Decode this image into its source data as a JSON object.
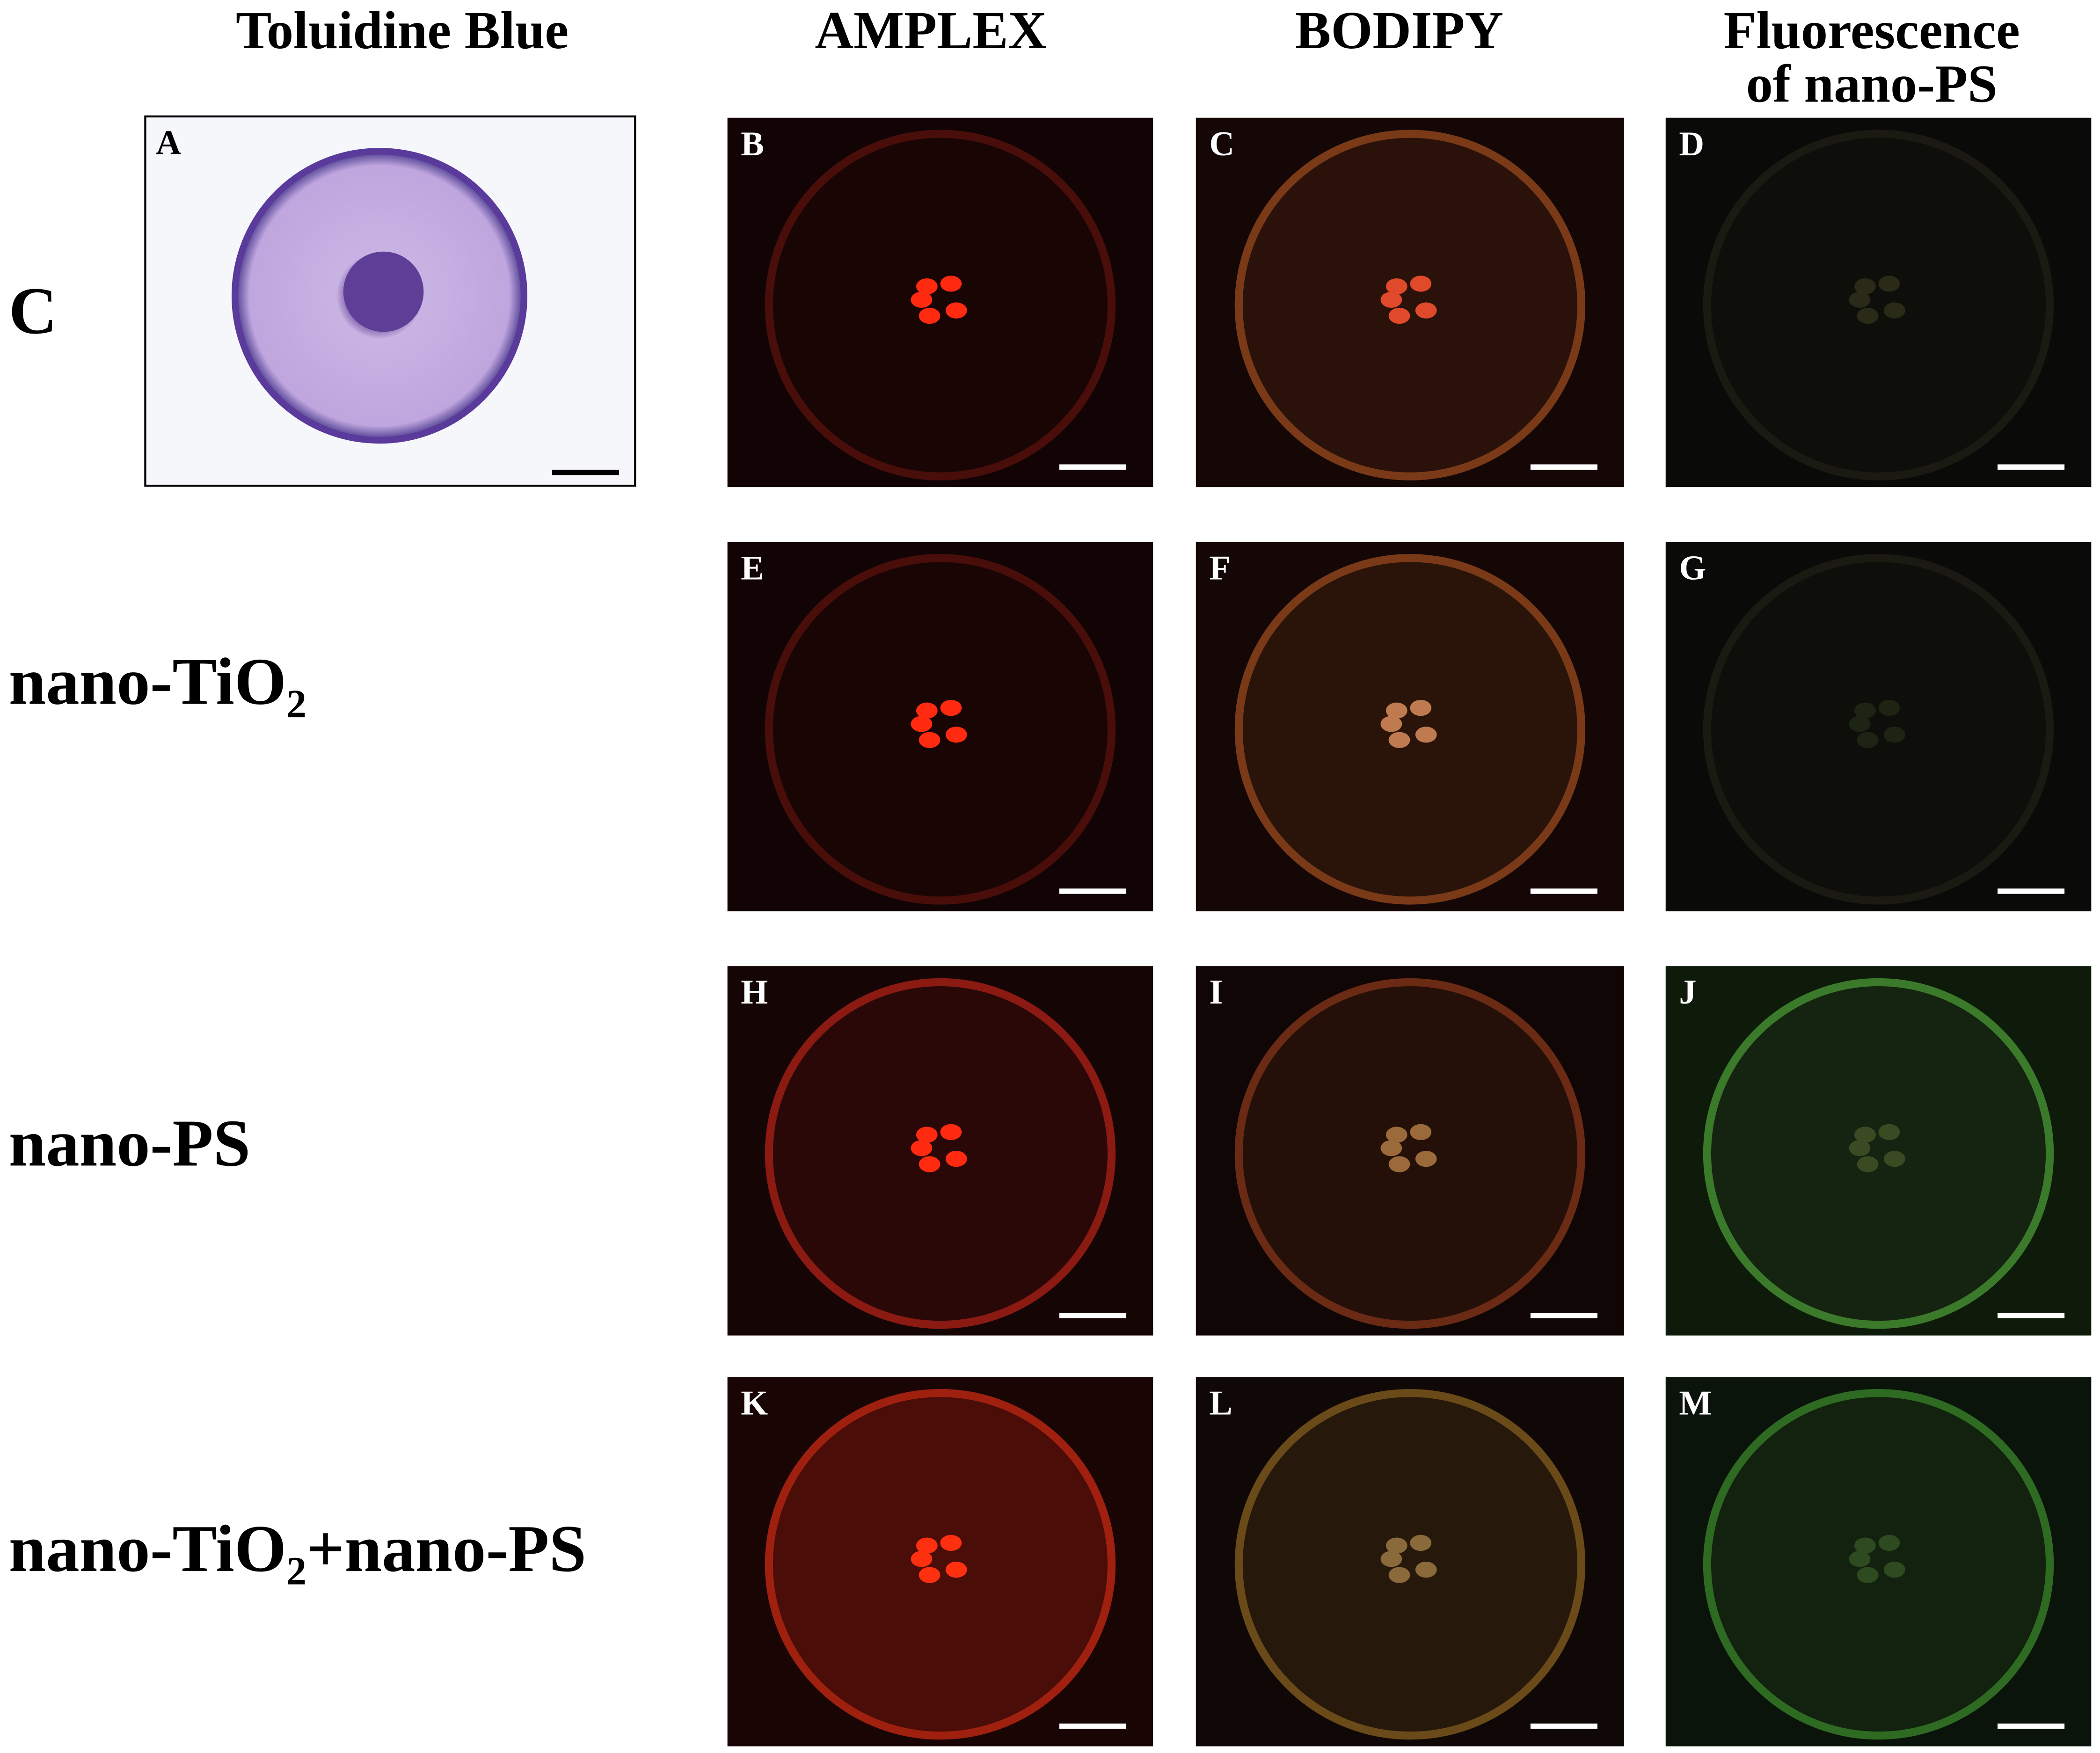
{
  "column_headers": [
    {
      "lines": [
        "Toluidine Blue"
      ]
    },
    {
      "lines": [
        "AMPLEX"
      ]
    },
    {
      "lines": [
        "BODIPY"
      ]
    },
    {
      "lines": [
        "Fluorescence",
        "of nano-PS"
      ]
    }
  ],
  "rows": [
    {
      "label": "C",
      "panels": [
        "A",
        "B",
        "C",
        "D"
      ]
    },
    {
      "label": "nano-TiO₂",
      "panels": [
        "E",
        "F",
        "G"
      ]
    },
    {
      "label": "nano-PS",
      "panels": [
        "H",
        "I",
        "J"
      ]
    },
    {
      "label": "nano-TiO₂+nano-PS",
      "panels": [
        "K",
        "L",
        "M"
      ]
    }
  ]
}
